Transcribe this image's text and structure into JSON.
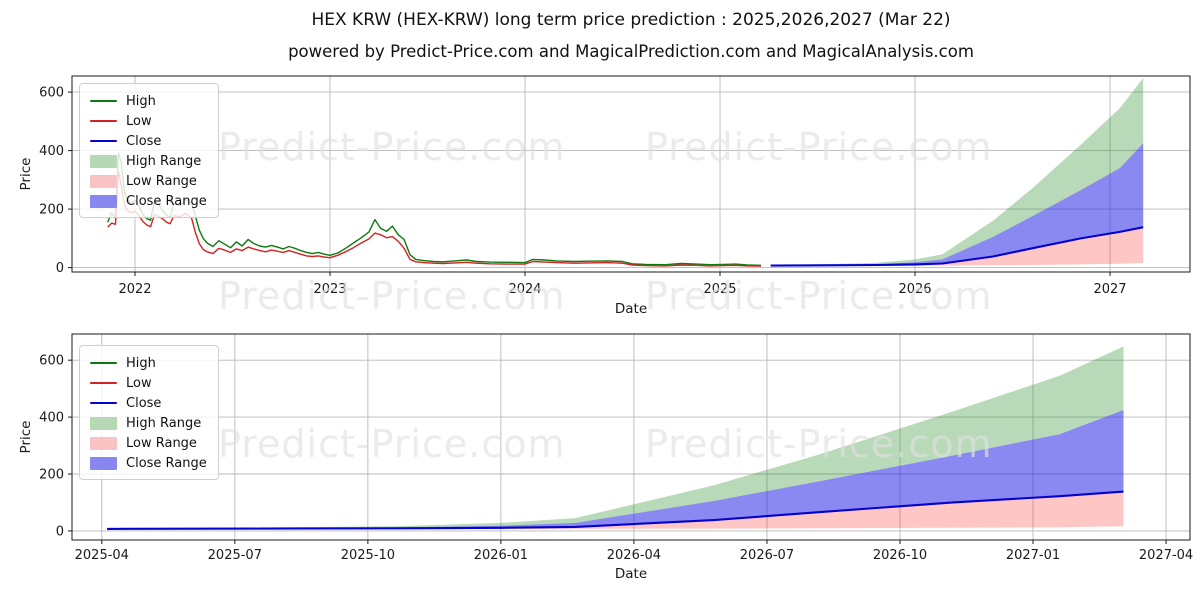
{
  "header": {
    "title": "HEX KRW (HEX-KRW) long term price prediction : 2025,2026,2027 (Mar 22)",
    "subtitle": "powered by Predict-Price.com and MagicalPrediction.com and MagicalAnalysis.com"
  },
  "watermark": {
    "text": "Predict-Price.com",
    "color": "rgba(224,224,224,0.66)"
  },
  "colors": {
    "high_line": "#0e7a0e",
    "low_line": "#d42222",
    "close_line": "#0404cc",
    "high_range_fill": "rgba(34,139,34,0.32)",
    "low_range_fill": "rgba(255,45,45,0.27)",
    "close_range_fill": "rgba(40,40,230,0.55)",
    "grid": "#b9b9b9",
    "spine": "#1a1a1a"
  },
  "chart_data": [
    {
      "name": "history-and-prediction",
      "type": "line",
      "xlabel": "Date",
      "ylabel": "Price",
      "xlim": [
        2021.677,
        2027.41
      ],
      "ylim": [
        -15,
        655
      ],
      "grid": true,
      "legend_position": "upper-left",
      "yticks": [
        {
          "v": 0,
          "label": "0"
        },
        {
          "v": 200,
          "label": "200"
        },
        {
          "v": 400,
          "label": "400"
        },
        {
          "v": 600,
          "label": "600"
        }
      ],
      "xticks": [
        {
          "v": 2022,
          "label": "2022"
        },
        {
          "v": 2023,
          "label": "2023"
        },
        {
          "v": 2024,
          "label": "2024"
        },
        {
          "v": 2025,
          "label": "2025"
        },
        {
          "v": 2026,
          "label": "2026"
        },
        {
          "v": 2027,
          "label": "2027"
        }
      ],
      "legend": [
        {
          "label": "High",
          "type": "line",
          "color": "#0e7a0e"
        },
        {
          "label": "Low",
          "type": "line",
          "color": "#d42222"
        },
        {
          "label": "Close",
          "type": "line",
          "color": "#0404cc"
        },
        {
          "label": "High Range",
          "type": "patch",
          "color": "#b5d8b5"
        },
        {
          "label": "Low Range",
          "type": "patch",
          "color": "#fac3c3"
        },
        {
          "label": "Close Range",
          "type": "patch",
          "color": "#8787f0"
        }
      ],
      "series": [
        {
          "name": "High",
          "type": "line",
          "color": "#0e7a0e",
          "width": 1.4,
          "x": [
            2021.86,
            2021.88,
            2021.9,
            2021.915,
            2021.93,
            2021.945,
            2021.96,
            2021.98,
            2022.0,
            2022.02,
            2022.04,
            2022.06,
            2022.08,
            2022.1,
            2022.12,
            2022.14,
            2022.16,
            2022.18,
            2022.2,
            2022.23,
            2022.26,
            2022.29,
            2022.31,
            2022.33,
            2022.35,
            2022.37,
            2022.4,
            2022.43,
            2022.46,
            2022.49,
            2022.52,
            2022.55,
            2022.58,
            2022.61,
            2022.64,
            2022.67,
            2022.7,
            2022.73,
            2022.76,
            2022.79,
            2022.82,
            2022.85,
            2022.88,
            2022.91,
            2022.94,
            2022.97,
            2023.0,
            2023.04,
            2023.08,
            2023.12,
            2023.16,
            2023.2,
            2023.23,
            2023.26,
            2023.29,
            2023.32,
            2023.35,
            2023.38,
            2023.41,
            2023.44,
            2023.48,
            2023.53,
            2023.58,
            2023.64,
            2023.7,
            2023.75,
            2023.82,
            2023.9,
            2024.0,
            2024.04,
            2024.1,
            2024.16,
            2024.25,
            2024.33,
            2024.42,
            2024.5,
            2024.55,
            2024.62,
            2024.72,
            2024.8,
            2024.88,
            2024.95,
            2025.02,
            2025.08,
            2025.14,
            2025.21
          ],
          "y": [
            155,
            188,
            170,
            392,
            360,
            260,
            235,
            222,
            230,
            210,
            182,
            168,
            162,
            228,
            218,
            196,
            180,
            172,
            220,
            212,
            232,
            222,
            176,
            128,
            100,
            84,
            72,
            92,
            80,
            68,
            88,
            74,
            96,
            82,
            74,
            70,
            76,
            70,
            64,
            72,
            66,
            58,
            52,
            48,
            52,
            46,
            42,
            50,
            66,
            84,
            102,
            122,
            164,
            134,
            124,
            142,
            112,
            96,
            44,
            28,
            24,
            21,
            20,
            23,
            26,
            21,
            19,
            18,
            17,
            28,
            26,
            23,
            21,
            22,
            23,
            21,
            13,
            11,
            10,
            14,
            12,
            10,
            11,
            12,
            9,
            8
          ]
        },
        {
          "name": "Low",
          "type": "line",
          "color": "#d42222",
          "width": 1.4,
          "x": [
            2021.86,
            2021.88,
            2021.9,
            2021.915,
            2021.93,
            2021.945,
            2021.96,
            2021.98,
            2022.0,
            2022.02,
            2022.04,
            2022.06,
            2022.08,
            2022.1,
            2022.12,
            2022.14,
            2022.16,
            2022.18,
            2022.2,
            2022.23,
            2022.26,
            2022.29,
            2022.31,
            2022.33,
            2022.35,
            2022.37,
            2022.4,
            2022.43,
            2022.46,
            2022.49,
            2022.52,
            2022.55,
            2022.58,
            2022.61,
            2022.64,
            2022.67,
            2022.7,
            2022.73,
            2022.76,
            2022.79,
            2022.82,
            2022.85,
            2022.88,
            2022.91,
            2022.94,
            2022.97,
            2023.0,
            2023.04,
            2023.08,
            2023.12,
            2023.16,
            2023.2,
            2023.23,
            2023.26,
            2023.29,
            2023.32,
            2023.35,
            2023.38,
            2023.41,
            2023.44,
            2023.48,
            2023.53,
            2023.58,
            2023.64,
            2023.7,
            2023.75,
            2023.82,
            2023.9,
            2024.0,
            2024.04,
            2024.1,
            2024.16,
            2024.25,
            2024.33,
            2024.42,
            2024.5,
            2024.55,
            2024.62,
            2024.72,
            2024.8,
            2024.88,
            2024.95,
            2025.02,
            2025.08,
            2025.14,
            2025.21
          ],
          "y": [
            138,
            152,
            148,
            330,
            280,
            215,
            196,
            188,
            192,
            178,
            158,
            146,
            140,
            182,
            176,
            168,
            156,
            150,
            178,
            174,
            186,
            170,
            120,
            82,
            62,
            54,
            48,
            66,
            60,
            52,
            64,
            58,
            70,
            64,
            58,
            54,
            60,
            56,
            52,
            58,
            52,
            46,
            40,
            38,
            40,
            36,
            34,
            42,
            54,
            68,
            84,
            98,
            118,
            112,
            102,
            106,
            90,
            66,
            28,
            20,
            17,
            15,
            14,
            16,
            18,
            15,
            13,
            12,
            12,
            21,
            19,
            17,
            15,
            16,
            17,
            15,
            9,
            7,
            6,
            9,
            8,
            6,
            7,
            8,
            6,
            5
          ]
        },
        {
          "name": "High Range",
          "type": "band",
          "color": "rgba(34,139,34,0.32)",
          "x": [
            2025.26,
            2025.55,
            2025.8,
            2026.0,
            2026.14,
            2026.4,
            2026.6,
            2026.85,
            2027.05,
            2027.17
          ],
          "upper": [
            9,
            12,
            16,
            28,
            45,
            160,
            270,
            420,
            545,
            648
          ],
          "lower": [
            8,
            10,
            12,
            18,
            28,
            105,
            175,
            265,
            340,
            425
          ]
        },
        {
          "name": "Close Range",
          "type": "band",
          "color": "rgba(40,40,230,0.55)",
          "x": [
            2025.26,
            2025.55,
            2025.8,
            2026.0,
            2026.14,
            2026.4,
            2026.6,
            2026.85,
            2027.05,
            2027.17
          ],
          "upper": [
            8,
            10,
            12,
            18,
            28,
            105,
            175,
            265,
            340,
            425
          ],
          "lower": [
            7,
            8,
            9,
            11,
            14,
            38,
            66,
            100,
            122,
            138
          ]
        },
        {
          "name": "Low Range",
          "type": "band",
          "color": "rgba(255,45,45,0.27)",
          "x": [
            2025.26,
            2025.55,
            2025.8,
            2026.0,
            2026.14,
            2026.4,
            2026.6,
            2026.85,
            2027.05,
            2027.17
          ],
          "upper": [
            7,
            8,
            9,
            11,
            14,
            38,
            66,
            100,
            122,
            138
          ],
          "lower": [
            5,
            5,
            5,
            6,
            7,
            8,
            9,
            11,
            13,
            16
          ]
        },
        {
          "name": "Close",
          "type": "line",
          "color": "#0404cc",
          "width": 2.1,
          "x": [
            2025.26,
            2025.55,
            2025.8,
            2026.0,
            2026.14,
            2026.4,
            2026.6,
            2026.85,
            2027.05,
            2027.17
          ],
          "y": [
            7,
            8,
            9,
            11,
            14,
            38,
            66,
            100,
            122,
            138
          ]
        }
      ]
    },
    {
      "name": "prediction-zoom",
      "type": "line",
      "xlabel": "Date",
      "ylabel": "Price",
      "xlim": [
        2025.194,
        2027.295
      ],
      "ylim": [
        -32,
        692
      ],
      "grid": true,
      "legend_position": "upper-left",
      "yticks": [
        {
          "v": 0,
          "label": "0"
        },
        {
          "v": 200,
          "label": "200"
        },
        {
          "v": 400,
          "label": "400"
        },
        {
          "v": 600,
          "label": "600"
        }
      ],
      "xticks": [
        {
          "v": 2025.25,
          "label": "2025-04"
        },
        {
          "v": 2025.5,
          "label": "2025-07"
        },
        {
          "v": 2025.75,
          "label": "2025-10"
        },
        {
          "v": 2026.0,
          "label": "2026-01"
        },
        {
          "v": 2026.25,
          "label": "2026-04"
        },
        {
          "v": 2026.5,
          "label": "2026-07"
        },
        {
          "v": 2026.75,
          "label": "2026-10"
        },
        {
          "v": 2027.0,
          "label": "2027-01"
        },
        {
          "v": 2027.25,
          "label": "2027-04"
        }
      ],
      "legend": [
        {
          "label": "High",
          "type": "line",
          "color": "#0e7a0e"
        },
        {
          "label": "Low",
          "type": "line",
          "color": "#d42222"
        },
        {
          "label": "Close",
          "type": "line",
          "color": "#0404cc"
        },
        {
          "label": "High Range",
          "type": "patch",
          "color": "#b5d8b5"
        },
        {
          "label": "Low Range",
          "type": "patch",
          "color": "#fac3c3"
        },
        {
          "label": "Close Range",
          "type": "patch",
          "color": "#8787f0"
        }
      ],
      "series": [
        {
          "name": "High Range",
          "type": "band",
          "color": "rgba(34,139,34,0.32)",
          "x": [
            2025.26,
            2025.55,
            2025.8,
            2026.0,
            2026.14,
            2026.4,
            2026.6,
            2026.85,
            2027.05,
            2027.17
          ],
          "upper": [
            9,
            12,
            16,
            28,
            45,
            160,
            270,
            420,
            545,
            648
          ],
          "lower": [
            8,
            10,
            12,
            18,
            28,
            105,
            175,
            265,
            340,
            425
          ]
        },
        {
          "name": "Close Range",
          "type": "band",
          "color": "rgba(40,40,230,0.55)",
          "x": [
            2025.26,
            2025.55,
            2025.8,
            2026.0,
            2026.14,
            2026.4,
            2026.6,
            2026.85,
            2027.05,
            2027.17
          ],
          "upper": [
            8,
            10,
            12,
            18,
            28,
            105,
            175,
            265,
            340,
            425
          ],
          "lower": [
            7,
            8,
            9,
            11,
            14,
            38,
            66,
            100,
            122,
            138
          ]
        },
        {
          "name": "Low Range",
          "type": "band",
          "color": "rgba(255,45,45,0.27)",
          "x": [
            2025.26,
            2025.55,
            2025.8,
            2026.0,
            2026.14,
            2026.4,
            2026.6,
            2026.85,
            2027.05,
            2027.17
          ],
          "upper": [
            7,
            8,
            9,
            11,
            14,
            38,
            66,
            100,
            122,
            138
          ],
          "lower": [
            5,
            5,
            5,
            6,
            7,
            8,
            9,
            11,
            13,
            16
          ]
        },
        {
          "name": "Close",
          "type": "line",
          "color": "#0404cc",
          "width": 2.1,
          "x": [
            2025.26,
            2025.55,
            2025.8,
            2026.0,
            2026.14,
            2026.4,
            2026.6,
            2026.85,
            2027.05,
            2027.17
          ],
          "y": [
            7,
            8,
            9,
            11,
            14,
            38,
            66,
            100,
            122,
            138
          ]
        }
      ]
    }
  ]
}
